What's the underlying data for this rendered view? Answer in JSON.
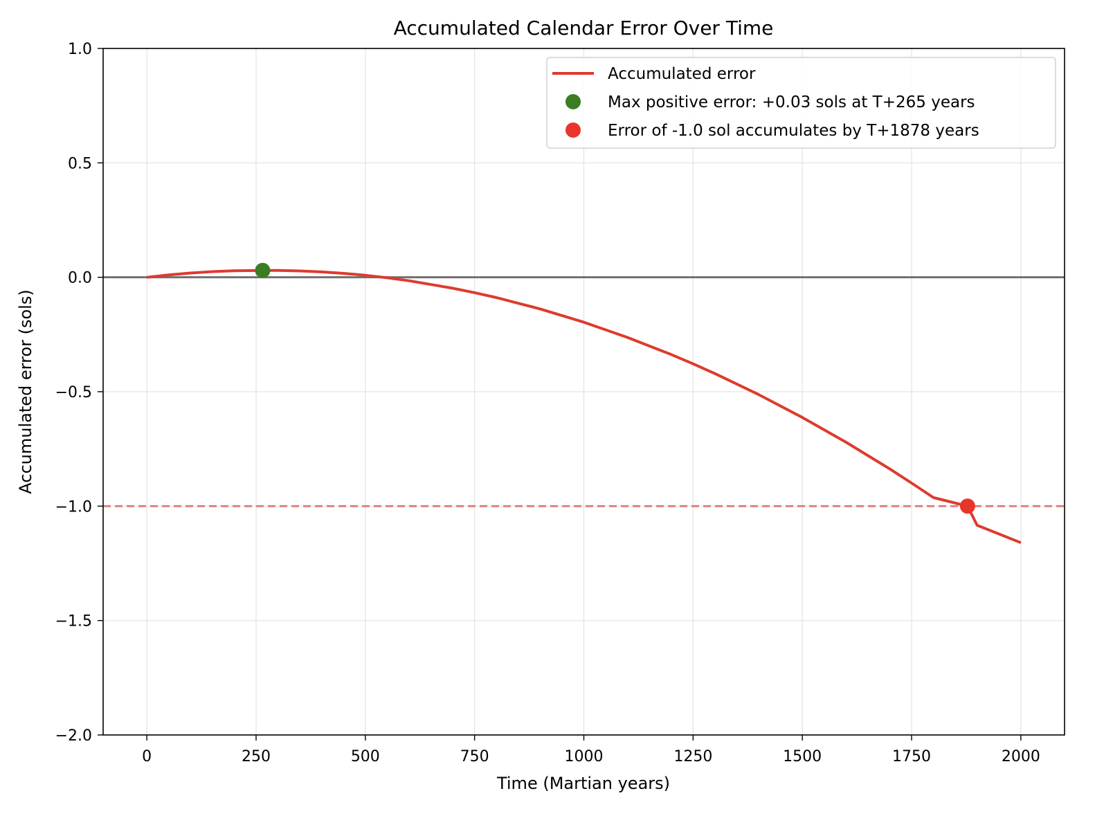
{
  "chart_data": {
    "type": "line",
    "title": "Accumulated Calendar Error Over Time",
    "xlabel": "Time (Martian years)",
    "ylabel": "Accumulated error (sols)",
    "xlim": [
      -100,
      2100
    ],
    "ylim": [
      -2.0,
      1.0
    ],
    "x_ticks": [
      0,
      250,
      500,
      750,
      1000,
      1250,
      1500,
      1750,
      2000
    ],
    "x_tick_labels": [
      "0",
      "250",
      "500",
      "750",
      "1000",
      "1250",
      "1500",
      "1750",
      "2000"
    ],
    "y_ticks": [
      1.0,
      0.5,
      0.0,
      -0.5,
      -1.0,
      -1.5,
      -2.0
    ],
    "y_tick_labels": [
      "1.0",
      "0.5",
      "0.0",
      "−0.5",
      "−1.0",
      "−1.5",
      "−2.0"
    ],
    "grid": true,
    "legend_position": "top-right",
    "series": [
      {
        "name": "Accumulated error",
        "color": "#dd3b2e",
        "x": [
          0,
          50,
          100,
          150,
          200,
          265,
          300,
          350,
          400,
          450,
          500,
          550,
          600,
          700,
          750,
          800,
          900,
          1000,
          1100,
          1200,
          1250,
          1300,
          1400,
          1500,
          1600,
          1700,
          1750,
          1800,
          1878,
          1900,
          2000
        ],
        "y": [
          0.0,
          0.0104,
          0.0186,
          0.0246,
          0.0284,
          0.03,
          0.0298,
          0.0278,
          0.0236,
          0.0172,
          0.0086,
          -0.0022,
          -0.0152,
          -0.0478,
          -0.0672,
          -0.0888,
          -0.1384,
          -0.1964,
          -0.2628,
          -0.3376,
          -0.3782,
          -0.4208,
          -0.5124,
          -0.6124,
          -0.7208,
          -0.8376,
          -0.8992,
          -0.9628,
          -1.0,
          -1.0836,
          -1.16
        ]
      }
    ],
    "markers": [
      {
        "name": "Max positive error: +0.03 sols at T+265 years",
        "x": 265,
        "y": 0.03,
        "color": "#3a7d22"
      },
      {
        "name": "Error of -1.0 sol accumulates by T+1878 years",
        "x": 1878,
        "y": -1.0,
        "color": "#e8352a"
      }
    ],
    "reference_lines": [
      {
        "y": 0.0,
        "style": "solid",
        "color": "#707070"
      },
      {
        "y": -1.0,
        "style": "dashed",
        "color": "#e08080"
      }
    ]
  }
}
